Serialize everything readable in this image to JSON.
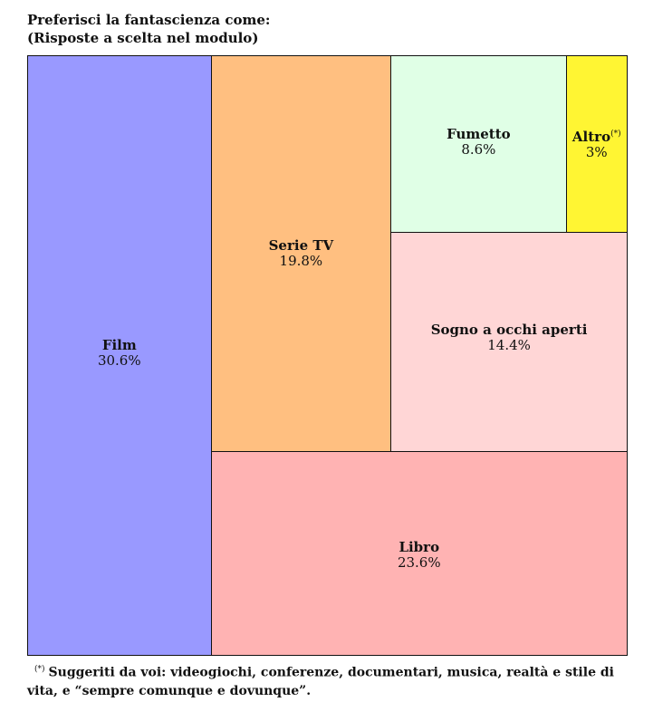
{
  "title": {
    "line1": "Preferisci la fantascienza come:",
    "line2": "(Risposte a scelta nel modulo)"
  },
  "chart_data": {
    "type": "treemap",
    "title": "Preferisci la fantascienza come:",
    "subtitle": "(Risposte a scelta nel modulo)",
    "unit": "%",
    "items": [
      {
        "label": "Film",
        "value": 30.6,
        "display": "30.6%",
        "color": "#9999ff"
      },
      {
        "label": "Serie TV",
        "value": 19.8,
        "display": "19.8%",
        "color": "#ffbf80"
      },
      {
        "label": "Fumetto",
        "value": 8.6,
        "display": "8.6%",
        "color": "#e0ffe6"
      },
      {
        "label": "Altro",
        "value": 3,
        "display": "3%",
        "color": "#fff533",
        "note_mark": "(*)"
      },
      {
        "label": "Sogno a occhi aperti",
        "value": 14.4,
        "display": "14.4%",
        "color": "#ffd6d6"
      },
      {
        "label": "Libro",
        "value": 23.6,
        "display": "23.6%",
        "color": "#ffb3b3"
      }
    ]
  },
  "footnote": {
    "mark": "(*)",
    "line1": "Suggeriti da voi: videogiochi, conferenze, documentari, musica, realtà e stile di",
    "line2": "vita, e “sempre comunque e dovunque”."
  }
}
